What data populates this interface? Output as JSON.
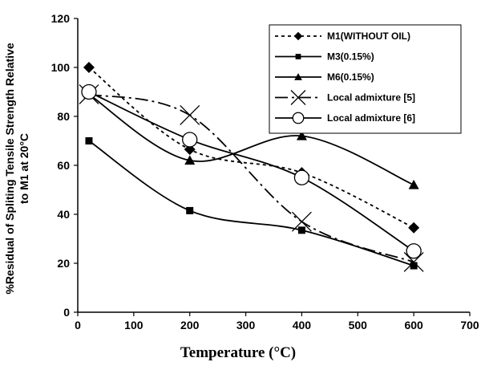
{
  "chart_data": {
    "type": "line",
    "xlabel": "Temperature (°C)",
    "ylabel_line1": "%Residual of Spliting Tensile Strength  Relative",
    "ylabel_line2": "to M1 at 20°C",
    "xlim": [
      0,
      700
    ],
    "ylim": [
      0,
      120
    ],
    "x_ticks": [
      "0",
      "100",
      "200",
      "300",
      "400",
      "500",
      "600",
      "700"
    ],
    "y_ticks": [
      "0",
      "20",
      "40",
      "60",
      "80",
      "100",
      "120"
    ],
    "grid": false,
    "legend_position": "top-right",
    "x": [
      20,
      200,
      400,
      600
    ],
    "series": [
      {
        "name": "M1(WITHOUT OIL)",
        "values": [
          100,
          66.5,
          57,
          34.5
        ],
        "color": "#000000",
        "dash": "short-dash",
        "marker": "diamond"
      },
      {
        "name": "M3(0.15%)",
        "values": [
          70,
          41.5,
          33.5,
          19
        ],
        "color": "#000000",
        "dash": "solid",
        "marker": "square"
      },
      {
        "name": "M6(0.15%)",
        "values": [
          89,
          62,
          72,
          52
        ],
        "color": "#000000",
        "dash": "solid",
        "marker": "triangle"
      },
      {
        "name": "Local admixture [5]",
        "values": [
          89,
          80.5,
          37,
          20.5
        ],
        "color": "#000000",
        "dash": "long-dash-dot",
        "marker": "x"
      },
      {
        "name": "Local admixture [6]",
        "values": [
          90,
          70.5,
          55,
          25
        ],
        "color": "#000000",
        "dash": "solid",
        "marker": "circle"
      }
    ]
  }
}
